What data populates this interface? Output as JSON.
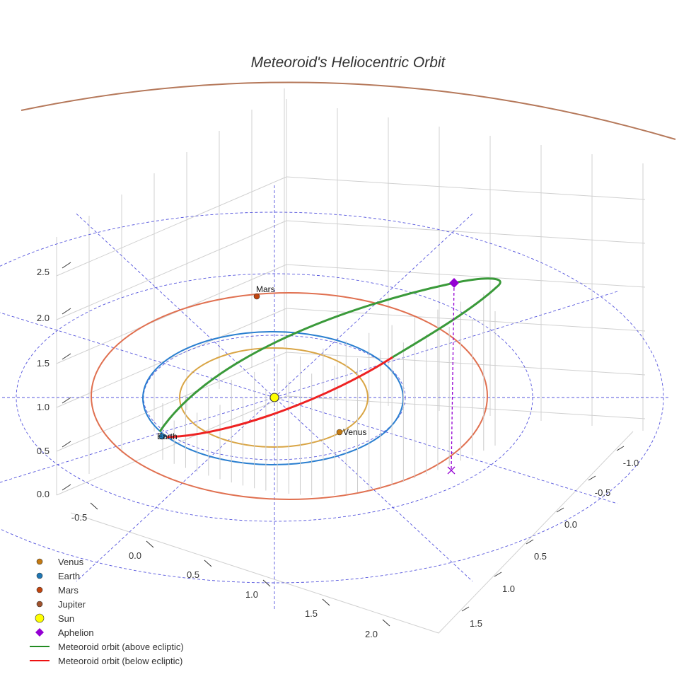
{
  "chart_data": {
    "type": "line",
    "title": "Meteoroid's Heliocentric Orbit",
    "projection": "3d",
    "x_ticks": [
      "-0.5",
      "0.0",
      "0.5",
      "1.0",
      "1.5",
      "2.0"
    ],
    "y_ticks": [
      "-1.0",
      "-0.5",
      "0.0",
      "0.5",
      "1.0",
      "1.5"
    ],
    "z_ticks": [
      "0.0",
      "0.5",
      "1.0",
      "1.5",
      "2.0",
      "2.5"
    ],
    "planet_labels": [
      "Mars",
      "Venus",
      "Earth"
    ],
    "legend": [
      {
        "label": "Venus",
        "marker": "circle",
        "color": "#c47a12"
      },
      {
        "label": "Earth",
        "marker": "circle",
        "color": "#1f77b4"
      },
      {
        "label": "Mars",
        "marker": "circle",
        "color": "#c1440e"
      },
      {
        "label": "Jupiter",
        "marker": "circle",
        "color": "#a0522d"
      },
      {
        "label": "Sun",
        "marker": "circle",
        "color": "#ffff00"
      },
      {
        "label": "Aphelion",
        "marker": "diamond",
        "color": "#9400d3"
      },
      {
        "label": "Meteoroid orbit (above ecliptic)",
        "marker": "line",
        "color": "#228b22"
      },
      {
        "label": "Meteoroid orbit (below ecliptic)",
        "marker": "line",
        "color": "#ee1111"
      }
    ],
    "legend_position": "lower-left",
    "orbit_semi_major_au": {
      "Venus": 0.72,
      "Earth": 1.0,
      "Mars": 1.52
    }
  }
}
